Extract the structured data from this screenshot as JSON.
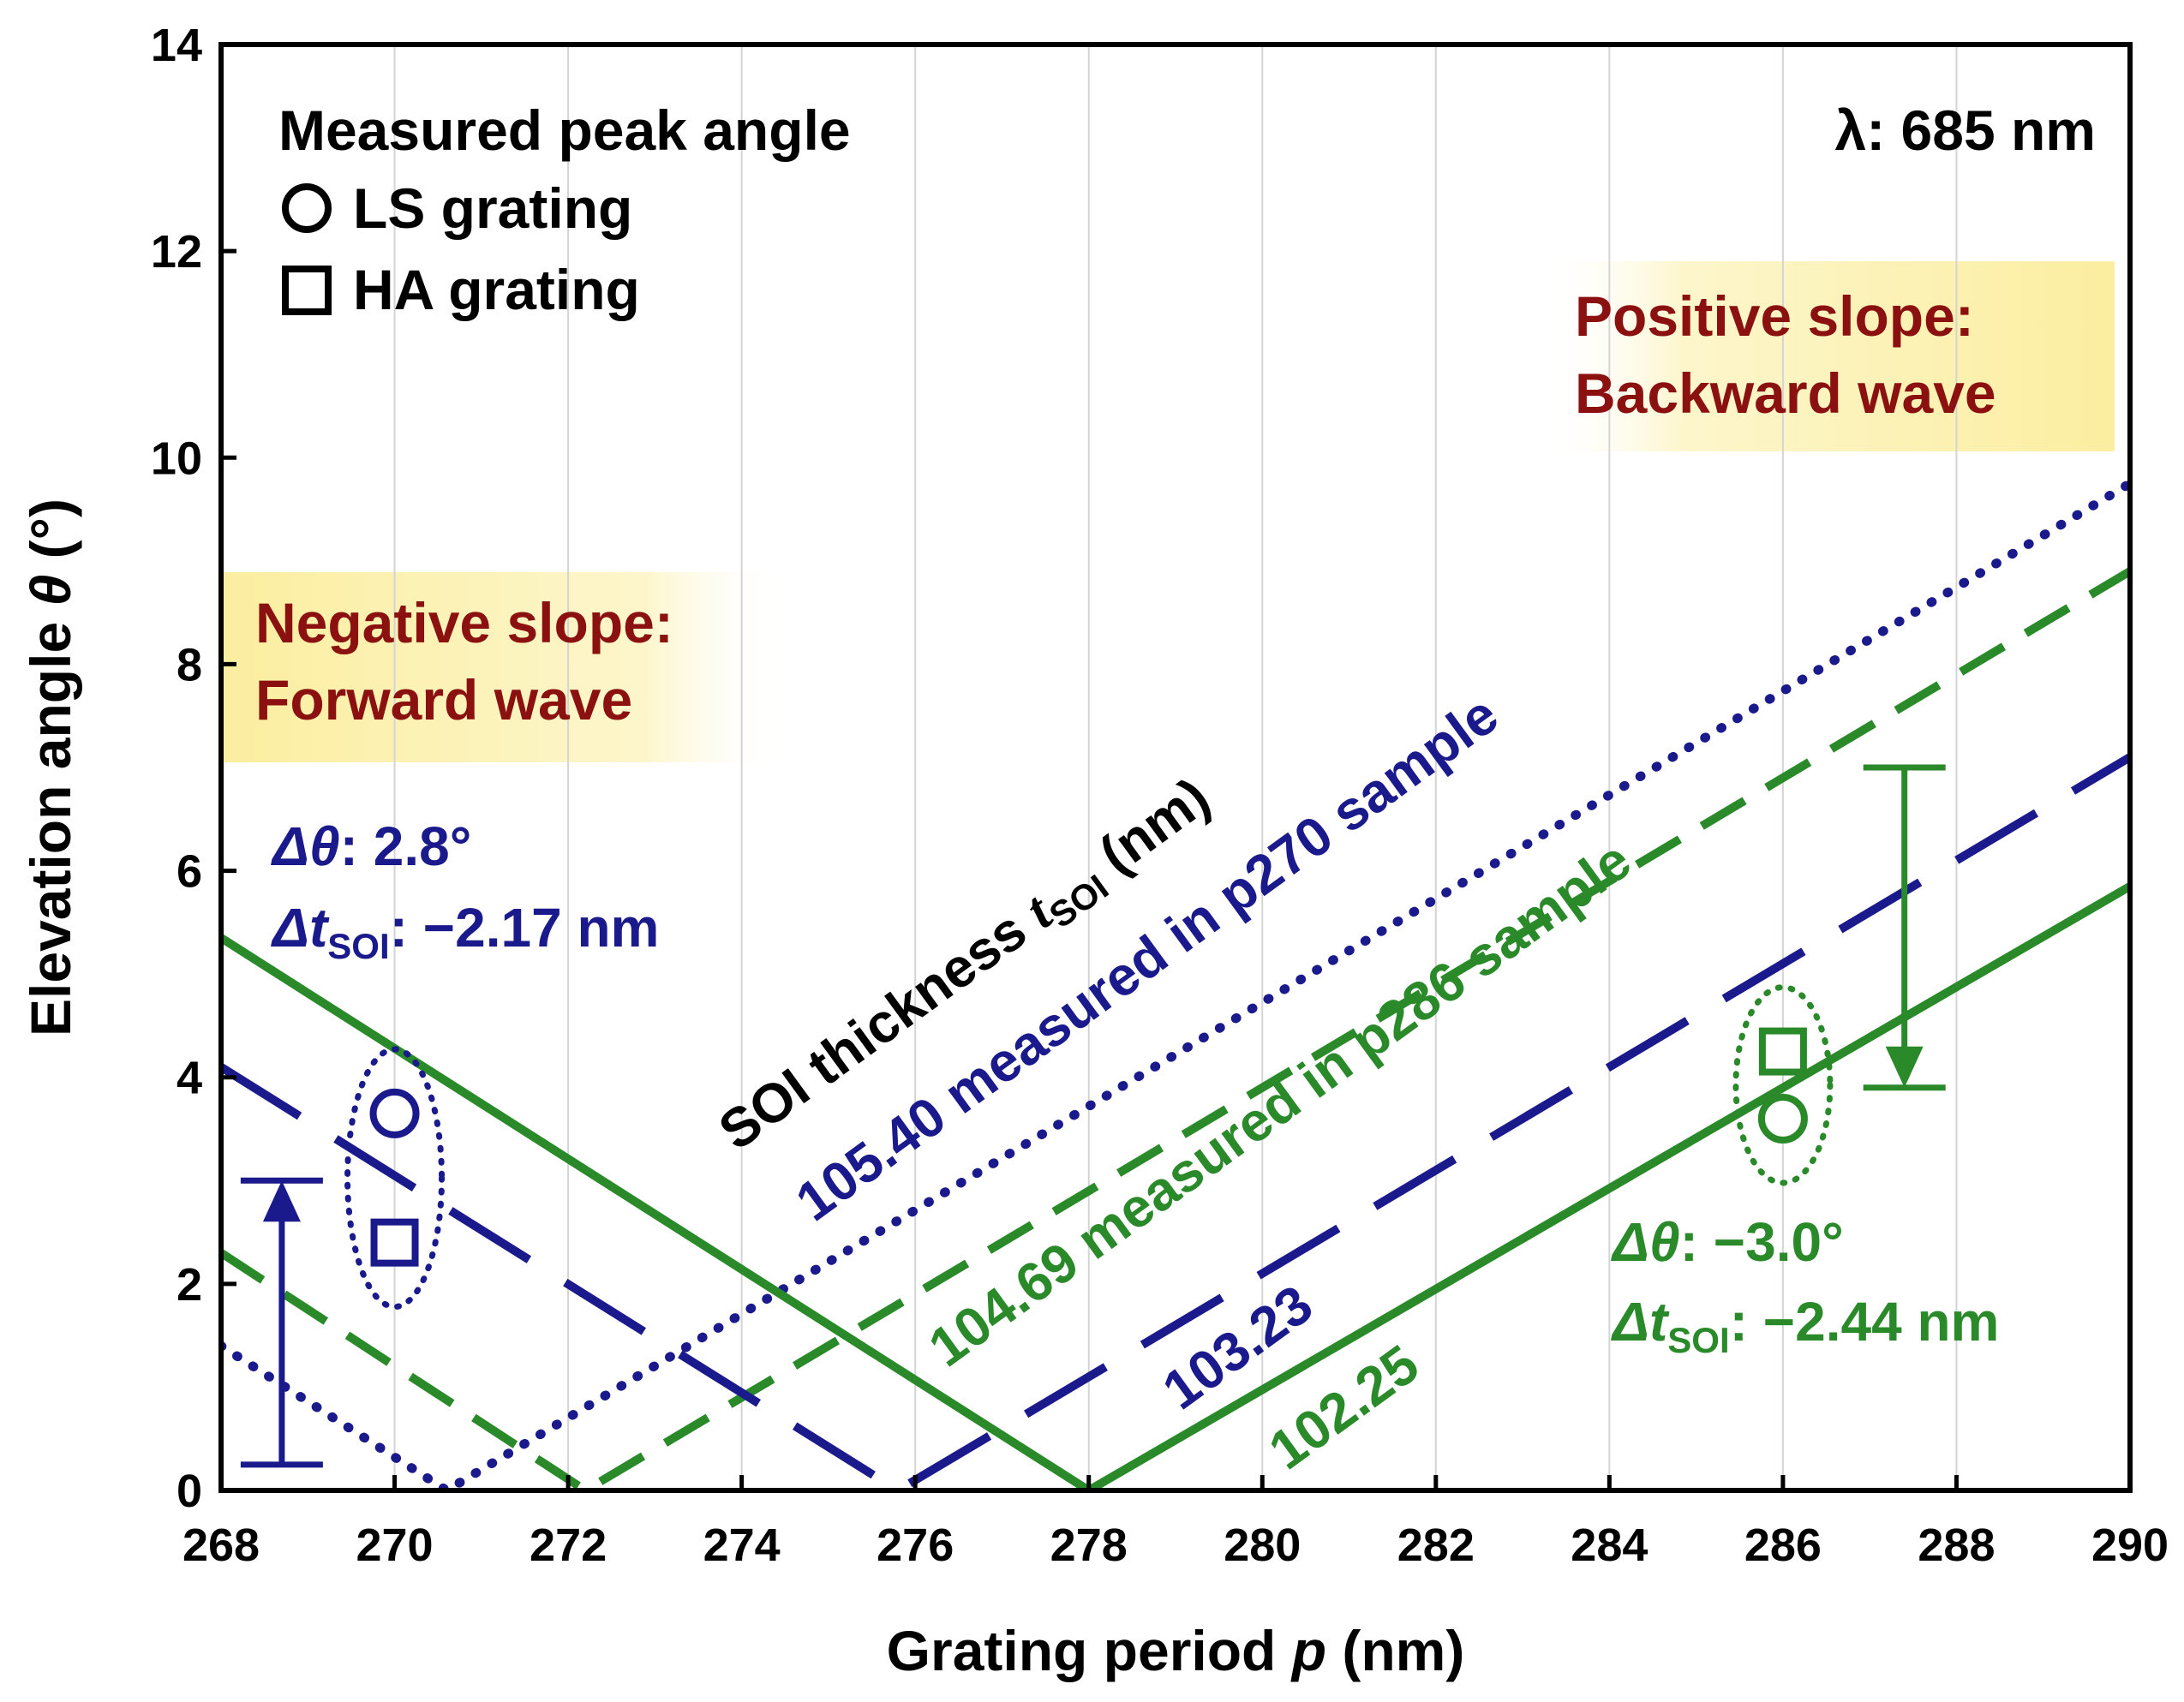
{
  "chart_data": {
    "type": "line",
    "xlabel": "Grating period p (nm)",
    "ylabel": "Elevation angle θ (°)",
    "xlim": [
      268,
      290
    ],
    "ylim": [
      0,
      14
    ],
    "x_ticks": [
      "268",
      "270",
      "272",
      "274",
      "276",
      "278",
      "280",
      "282",
      "284",
      "286",
      "288",
      "290"
    ],
    "y_ticks": [
      "0",
      "2",
      "4",
      "6",
      "8",
      "10",
      "12",
      "14"
    ],
    "grid": "vertical",
    "series": [
      {
        "name": "105.40",
        "label": "105.40 measured in p270 sample",
        "style": "dotted",
        "color": "#1a1a8c",
        "points": [
          [
            268,
            1.4
          ],
          [
            270.6,
            0.0
          ],
          [
            290,
            9.75
          ]
        ]
      },
      {
        "name": "104.69",
        "label": "104.69 measured in p286 sample",
        "style": "dashed",
        "color": "#2a8a2a",
        "points": [
          [
            268,
            2.3
          ],
          [
            272.2,
            0.0
          ],
          [
            290,
            8.9
          ]
        ]
      },
      {
        "name": "103.23",
        "label": "103.23",
        "style": "long-dashed",
        "color": "#1a1a8c",
        "points": [
          [
            268,
            4.1
          ],
          [
            275.8,
            0.0
          ],
          [
            290,
            7.1
          ]
        ]
      },
      {
        "name": "102.25",
        "label": "102.25",
        "style": "solid",
        "color": "#2a8a2a",
        "points": [
          [
            268,
            5.35
          ],
          [
            278.0,
            0.0
          ],
          [
            290,
            5.85
          ]
        ]
      }
    ],
    "markers": [
      {
        "name": "LS grating p270",
        "shape": "circle",
        "x": 270,
        "y": 3.65,
        "color": "#1a1a8c"
      },
      {
        "name": "HA grating p270",
        "shape": "square",
        "x": 270,
        "y": 2.4,
        "color": "#1a1a8c"
      },
      {
        "name": "LS grating p286",
        "shape": "circle",
        "x": 286,
        "y": 3.6,
        "color": "#2a8a2a"
      },
      {
        "name": "HA grating p286",
        "shape": "square",
        "x": 286,
        "y": 4.25,
        "color": "#2a8a2a"
      }
    ],
    "arrows": [
      {
        "name": "p270 shift",
        "x": 268.7,
        "from": 0.25,
        "to": 3.0,
        "color": "#1a1a8c"
      },
      {
        "name": "p286 shift",
        "x": 287.4,
        "from": 7.0,
        "to": 3.9,
        "color": "#2a8a2a"
      }
    ],
    "legend": {
      "title": "Measured peak angle",
      "items": [
        {
          "shape": "circle",
          "label": "LS grating"
        },
        {
          "shape": "square",
          "label": "HA grating"
        }
      ],
      "placement": "top-left"
    },
    "annotations": {
      "wavelength": "λ: 685 nm",
      "soi_title": "SOI thickness ",
      "soi_title_var": "t",
      "soi_title_sub": "SOI",
      "soi_title_unit": " (nm)",
      "negative_slope_1": "Negative slope:",
      "negative_slope_2": "Forward wave",
      "positive_slope_1": "Positive slope:",
      "positive_slope_2": "Backward wave",
      "delta_left_theta_sym": "Δθ",
      "delta_left_theta_val": ":  2.8°",
      "delta_left_t_sym": "Δt",
      "delta_left_t_sub": "SOI",
      "delta_left_t_val": ":  −2.17 nm",
      "delta_right_theta_sym": "Δθ",
      "delta_right_theta_val": ": −3.0°",
      "delta_right_t_sym": "Δt",
      "delta_right_t_sub": "SOI",
      "delta_right_t_val": ":  −2.44 nm"
    }
  }
}
